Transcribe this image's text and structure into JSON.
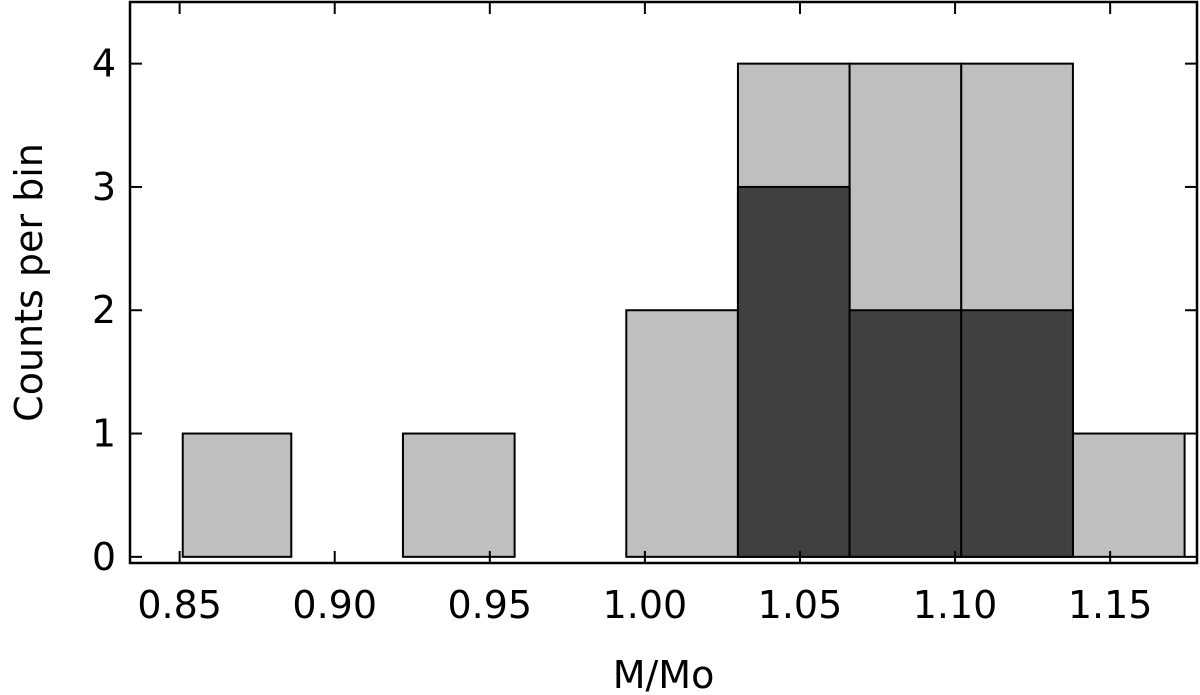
{
  "chart_data": {
    "type": "bar",
    "histogram": true,
    "stacked_overlay": true,
    "xlabel": "M/Mo",
    "ylabel": "Counts per bin",
    "xlim": [
      0.834,
      1.178
    ],
    "ylim": [
      -0.05,
      4.5
    ],
    "bin_edges": [
      0.85,
      0.886,
      0.922,
      0.958,
      0.994,
      1.03,
      1.066,
      1.102,
      1.138,
      1.174
    ],
    "x_ticks": [
      0.85,
      0.9,
      0.95,
      1.0,
      1.05,
      1.1,
      1.15
    ],
    "x_tick_labels": [
      "0.85",
      "0.90",
      "0.95",
      "1.00",
      "1.05",
      "1.10",
      "1.15"
    ],
    "y_ticks": [
      0,
      1,
      2,
      3,
      4
    ],
    "y_tick_labels": [
      "0",
      "1",
      "2",
      "3",
      "4"
    ],
    "grid": false,
    "legend": "none",
    "series": [
      {
        "color": "#bfbfbf",
        "bins": [
          {
            "x0": 0.851,
            "x1": 0.886,
            "value": 1
          },
          {
            "x0": 0.922,
            "x1": 0.958,
            "value": 1
          },
          {
            "x0": 0.994,
            "x1": 1.03,
            "value": 2
          },
          {
            "x0": 1.03,
            "x1": 1.066,
            "value": 4
          },
          {
            "x0": 1.066,
            "x1": 1.102,
            "value": 4
          },
          {
            "x0": 1.102,
            "x1": 1.138,
            "value": 4
          },
          {
            "x0": 1.138,
            "x1": 1.174,
            "value": 1
          }
        ]
      },
      {
        "color": "#404040",
        "bins": [
          {
            "x0": 1.03,
            "x1": 1.066,
            "value": 3
          },
          {
            "x0": 1.066,
            "x1": 1.102,
            "value": 2
          },
          {
            "x0": 1.102,
            "x1": 1.138,
            "value": 2
          }
        ]
      }
    ]
  }
}
